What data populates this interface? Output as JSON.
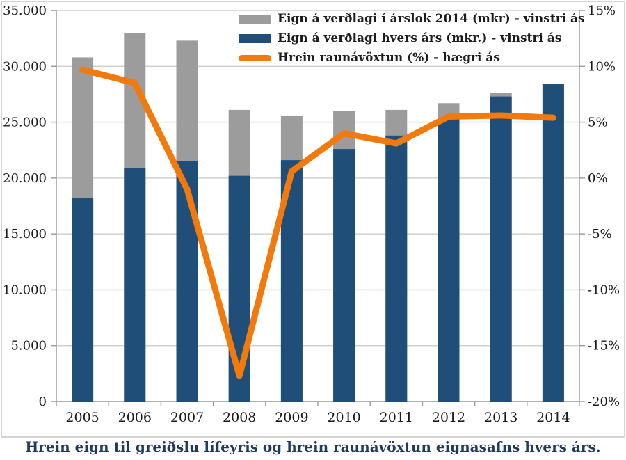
{
  "caption": "Hrein eign til greiðslu lífeyris og hrein raunávöxtun eignasafns hvers árs.",
  "colors": {
    "bar_gray": "#9c9c9c",
    "bar_blue": "#1f4e79",
    "line_orange": "#f27a0d",
    "gridline": "#c8c8c8",
    "axis": "#9e9e9e",
    "tick_text": "#1a1a1a",
    "frame_border": "#d4d4d4",
    "caption_text": "#1f3a5f",
    "background": "#ffffff"
  },
  "chart_data": {
    "type": "bar",
    "subtype": "combo-bar-line",
    "title": "",
    "xlabel": "",
    "ylabel_left": "",
    "ylabel_right": "",
    "grid": "horizontal",
    "legend_position": "top-center-inside",
    "categories": [
      "2005",
      "2006",
      "2007",
      "2008",
      "2009",
      "2010",
      "2011",
      "2012",
      "2013",
      "2014"
    ],
    "series": [
      {
        "name": "Eign á verðlagi í árslok 2014 (mkr) - vinstri ás",
        "type": "bar",
        "axis": "left",
        "color": "#9c9c9c",
        "values": [
          30800,
          33000,
          32300,
          26100,
          25600,
          26000,
          26100,
          26700,
          27600,
          28400
        ]
      },
      {
        "name": "Eign á verðlagi hvers árs (mkr.) - vinstri ás",
        "type": "bar",
        "axis": "left",
        "color": "#1f4e79",
        "values": [
          18200,
          20900,
          21500,
          20200,
          21600,
          22600,
          23800,
          25400,
          27300,
          28400
        ]
      },
      {
        "name": "Hrein raunávöxtun (%) - hægri ás",
        "type": "line",
        "axis": "right",
        "color": "#f27a0d",
        "values": [
          9.7,
          8.5,
          -1.0,
          -17.7,
          0.6,
          4.0,
          3.1,
          5.5,
          5.6,
          5.4
        ]
      }
    ],
    "left_axis": {
      "min": 0,
      "max": 35000,
      "step": 5000,
      "tick_labels": [
        "35.000",
        "30.000",
        "25.000",
        "20.000",
        "15.000",
        "10.000",
        "5.000",
        "0"
      ]
    },
    "right_axis": {
      "min": -20,
      "max": 15,
      "step": 5,
      "tick_labels": [
        "15%",
        "10%",
        "5%",
        "0%",
        "-5%",
        "-10%",
        "-15%",
        "-20%"
      ]
    }
  }
}
